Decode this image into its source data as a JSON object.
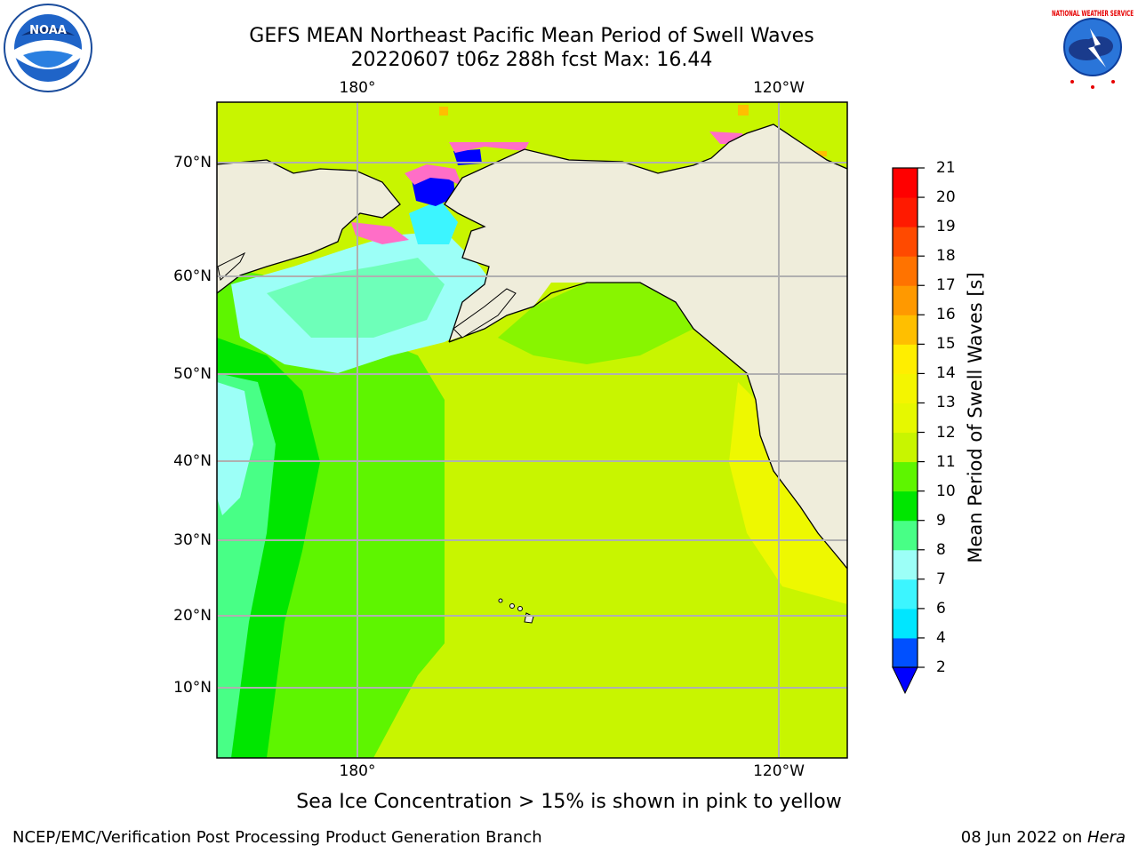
{
  "header": {
    "title_line1": "GEFS MEAN Northeast Pacific Mean Period of Swell Waves",
    "title_line2": "20220607 t06z 288h fcst   Max: 16.44"
  },
  "logos": {
    "noaa_text": "NOAA",
    "nws_text": "NATIONAL WEATHER SERVICE"
  },
  "map": {
    "lon_labels_top": [
      "180°",
      "120°W"
    ],
    "lon_labels_bottom": [
      "180°",
      "120°W"
    ],
    "lat_labels": [
      "70°N",
      "60°N",
      "50°N",
      "40°N",
      "30°N",
      "20°N",
      "10°N"
    ],
    "colors": {
      "land": "#efeddb",
      "ocean_base": "#c8f500",
      "grid": "#b0b0b0"
    }
  },
  "colorbar": {
    "title": "Mean Period of Swell Waves [s]",
    "ticks": [
      "2",
      "4",
      "6",
      "7",
      "8",
      "9",
      "10",
      "11",
      "12",
      "13",
      "14",
      "15",
      "16",
      "17",
      "18",
      "19",
      "20",
      "21"
    ],
    "colors": [
      "#0050ff",
      "#00e6ff",
      "#3cf5ff",
      "#9cfff7",
      "#48ff86",
      "#00e600",
      "#5ef500",
      "#c8f500",
      "#e6f800",
      "#f4f500",
      "#ffee00",
      "#ffbf00",
      "#ff9900",
      "#ff7300",
      "#ff4a00",
      "#ff1a00",
      "#ff0000"
    ],
    "extend_color": "#0000ff"
  },
  "footer": {
    "note": "Sea Ice Concentration > 15% is shown in pink to yellow",
    "left": "NCEP/EMC/Verification Post Processing Product Generation Branch",
    "right_date": "08 Jun 2022 on ",
    "right_host": "Hera"
  }
}
